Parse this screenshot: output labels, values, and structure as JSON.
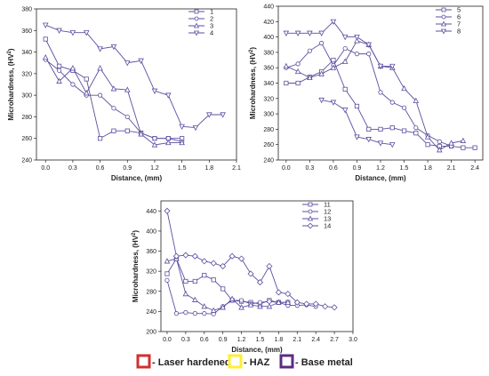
{
  "colors": {
    "laser": "#d32f2f",
    "haz": "#ffee33",
    "base": "#5b2c83",
    "line": "#5b4fa0"
  },
  "chart_data": [
    {
      "type": "line",
      "xlabel": "Distance, (mm)",
      "ylabel": "Microhardness, (HV",
      "ylabel_sup": "2",
      "ylabel_close": ")",
      "xlim": [
        -0.1,
        2.1
      ],
      "ylim": [
        240,
        380
      ],
      "xticks": [
        "0.0",
        "0.3",
        "0.6",
        "0.9",
        "1.2",
        "1.5",
        "1.8",
        "2.1"
      ],
      "yticks": [
        "240",
        "260",
        "280",
        "300",
        "320",
        "340",
        "360",
        "380"
      ],
      "series": [
        {
          "name": "1",
          "marker": "square",
          "x": [
            0.0,
            0.15,
            0.3,
            0.45,
            0.6,
            0.75,
            0.9,
            1.05,
            1.2,
            1.35,
            1.5
          ],
          "y": [
            352,
            327,
            323,
            315,
            260,
            267,
            267,
            265,
            260,
            260,
            260
          ]
        },
        {
          "name": "2",
          "marker": "circle",
          "x": [
            0.0,
            0.15,
            0.3,
            0.45,
            0.6,
            0.75,
            0.9,
            1.05,
            1.2,
            1.35,
            1.5
          ],
          "y": [
            333,
            323,
            310,
            300,
            300,
            288,
            280,
            265,
            260,
            260,
            257
          ]
        },
        {
          "name": "3",
          "marker": "triangle-up",
          "x": [
            0.0,
            0.15,
            0.3,
            0.45,
            0.6,
            0.75,
            0.9,
            1.05,
            1.2,
            1.35,
            1.5
          ],
          "y": [
            335,
            313,
            325,
            302,
            325,
            306,
            305,
            264,
            254,
            256,
            256
          ]
        },
        {
          "name": "4",
          "marker": "triangle-down",
          "x": [
            0.0,
            0.15,
            0.3,
            0.45,
            0.6,
            0.75,
            0.9,
            1.05,
            1.2,
            1.35,
            1.5,
            1.65,
            1.8,
            1.95
          ],
          "y": [
            365,
            360,
            358,
            358,
            343,
            345,
            330,
            332,
            304,
            300,
            271,
            270,
            282,
            282
          ]
        }
      ]
    },
    {
      "type": "line",
      "xlabel": "Distance, (mm)",
      "ylabel": "Microhardness, (HV",
      "ylabel_sup": "2",
      "ylabel_close": ")",
      "xlim": [
        -0.1,
        2.5
      ],
      "ylim": [
        240,
        440
      ],
      "xticks": [
        "0.0",
        "0.3",
        "0.6",
        "0.9",
        "1.2",
        "1.5",
        "1.8",
        "2.1",
        "2.4"
      ],
      "yticks": [
        "240",
        "260",
        "280",
        "300",
        "320",
        "340",
        "360",
        "380",
        "400",
        "420",
        "440"
      ],
      "series": [
        {
          "name": "5",
          "marker": "square",
          "x": [
            0.0,
            0.15,
            0.3,
            0.45,
            0.6,
            0.75,
            0.9,
            1.05,
            1.2,
            1.35,
            1.5,
            1.65,
            1.8,
            1.95,
            2.1,
            2.25,
            2.4
          ],
          "y": [
            340,
            340,
            348,
            355,
            370,
            332,
            310,
            280,
            280,
            282,
            278,
            275,
            260,
            258,
            258,
            256,
            256
          ]
        },
        {
          "name": "6",
          "marker": "circle",
          "x": [
            0.0,
            0.15,
            0.3,
            0.45,
            0.6,
            0.75,
            0.9,
            1.05,
            1.2,
            1.35,
            1.5,
            1.65,
            1.8,
            1.95,
            2.1
          ],
          "y": [
            360,
            365,
            382,
            392,
            363,
            385,
            378,
            378,
            328,
            315,
            308,
            282,
            272,
            264,
            258
          ]
        },
        {
          "name": "7",
          "marker": "triangle-up",
          "x": [
            0.0,
            0.15,
            0.3,
            0.45,
            0.6,
            0.75,
            0.9,
            1.05,
            1.2,
            1.35,
            1.5,
            1.65,
            1.8,
            1.95,
            2.1,
            2.25
          ],
          "y": [
            362,
            355,
            347,
            352,
            360,
            368,
            395,
            390,
            362,
            360,
            333,
            317,
            270,
            253,
            262,
            265
          ]
        },
        {
          "name": "8",
          "marker": "triangle-down",
          "x": [
            0.0,
            0.15,
            0.3,
            0.45,
            0.6,
            0.75,
            0.9,
            1.05,
            1.2,
            1.35
          ],
          "y": [
            405,
            405,
            405,
            405,
            420,
            400,
            400,
            390,
            362,
            362
          ]
        }
      ],
      "extra_series": [
        {
          "name": "8b",
          "marker": "triangle-down",
          "x": [
            0.45,
            0.6,
            0.75,
            0.9,
            1.05,
            1.2,
            1.35
          ],
          "y": [
            318,
            315,
            305,
            270,
            267,
            262,
            260
          ]
        }
      ]
    },
    {
      "type": "line",
      "xlabel": "Distance, (mm)",
      "ylabel": "Microhardness, (HV",
      "ylabel_sup": "2",
      "ylabel_close": ")",
      "xlim": [
        -0.1,
        3.0
      ],
      "ylim": [
        200,
        460
      ],
      "xticks": [
        "0.0",
        "0.3",
        "0.6",
        "0.9",
        "1.2",
        "1.5",
        "1.8",
        "2.1",
        "2.4",
        "2.7",
        "3.0"
      ],
      "yticks": [
        "200",
        "240",
        "280",
        "320",
        "360",
        "400",
        "440"
      ],
      "series": [
        {
          "name": "11",
          "marker": "square",
          "x": [
            0.0,
            0.15,
            0.3,
            0.45,
            0.6,
            0.75,
            0.9,
            1.05,
            1.2,
            1.35,
            1.5,
            1.65,
            1.8,
            1.95
          ],
          "y": [
            315,
            345,
            300,
            300,
            312,
            303,
            285,
            262,
            260,
            258,
            255,
            262,
            258,
            258
          ]
        },
        {
          "name": "12",
          "marker": "circle",
          "x": [
            0.0,
            0.15,
            0.3,
            0.45,
            0.6,
            0.75,
            0.9,
            1.05,
            1.2,
            1.35,
            1.5,
            1.65,
            1.8,
            1.95,
            2.1,
            2.25,
            2.4
          ],
          "y": [
            302,
            236,
            238,
            236,
            236,
            235,
            250,
            262,
            262,
            255,
            258,
            260,
            258,
            252,
            252,
            253,
            250
          ]
        },
        {
          "name": "13",
          "marker": "triangle-up",
          "x": [
            0.0,
            0.15,
            0.3,
            0.45,
            0.6,
            0.75,
            0.9,
            1.05,
            1.2,
            1.35,
            1.5,
            1.65,
            1.8,
            1.95
          ],
          "y": [
            340,
            345,
            275,
            263,
            250,
            242,
            248,
            265,
            248,
            253,
            250,
            250,
            258,
            258
          ]
        },
        {
          "name": "14",
          "marker": "diamond",
          "x": [
            0.0,
            0.15,
            0.3,
            0.45,
            0.6,
            0.75,
            0.9,
            1.05,
            1.2,
            1.35,
            1.5,
            1.65,
            1.8,
            1.95,
            2.1,
            2.25,
            2.4,
            2.55,
            2.7
          ],
          "y": [
            440,
            350,
            352,
            350,
            340,
            336,
            330,
            350,
            345,
            315,
            298,
            330,
            278,
            275,
            258,
            255,
            255,
            250,
            248
          ]
        }
      ]
    }
  ],
  "legend_key": [
    {
      "label": " - Laser hardened",
      "color_key": "laser"
    },
    {
      "label": " - HAZ",
      "color_key": "haz"
    },
    {
      "label": " - Base metal",
      "color_key": "base"
    }
  ]
}
